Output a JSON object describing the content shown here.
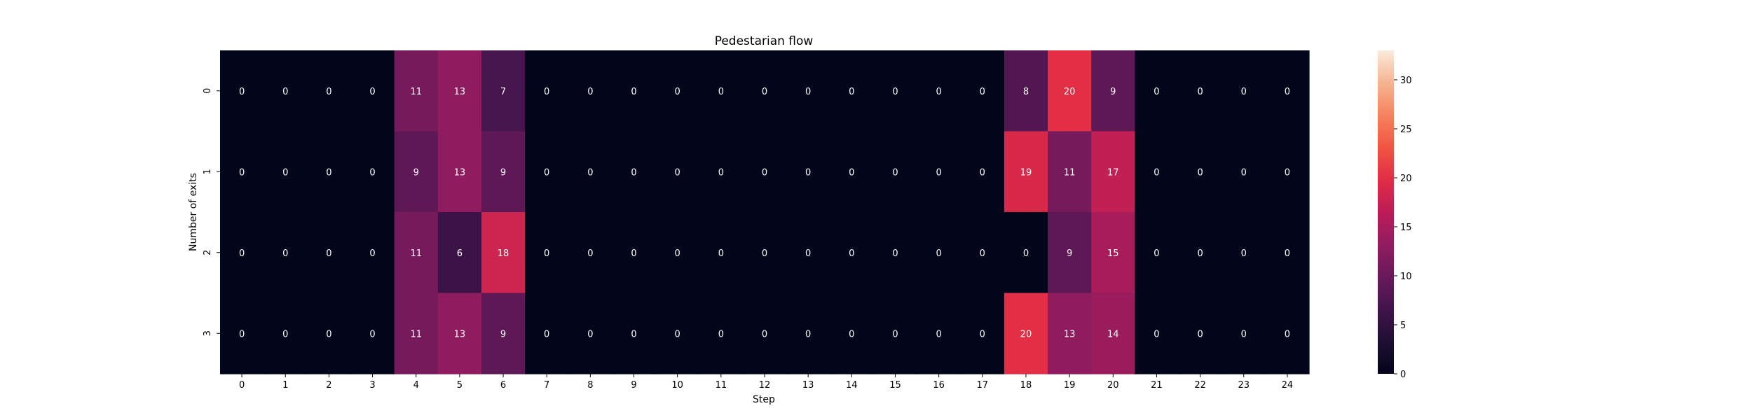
{
  "chart_data": {
    "type": "heatmap",
    "title": "Pedestarian flow",
    "xlabel": "Step",
    "ylabel": "Number of exits",
    "x": [
      "0",
      "1",
      "2",
      "3",
      "4",
      "5",
      "6",
      "7",
      "8",
      "9",
      "10",
      "11",
      "12",
      "13",
      "14",
      "15",
      "16",
      "17",
      "18",
      "19",
      "20",
      "21",
      "22",
      "23",
      "24"
    ],
    "y": [
      "0",
      "1",
      "2",
      "3"
    ],
    "values": [
      [
        0,
        0,
        0,
        0,
        11,
        13,
        7,
        0,
        0,
        0,
        0,
        0,
        0,
        0,
        0,
        0,
        0,
        0,
        8,
        20,
        9,
        0,
        0,
        0,
        0
      ],
      [
        0,
        0,
        0,
        0,
        9,
        13,
        9,
        0,
        0,
        0,
        0,
        0,
        0,
        0,
        0,
        0,
        0,
        0,
        19,
        11,
        17,
        0,
        0,
        0,
        0
      ],
      [
        0,
        0,
        0,
        0,
        11,
        6,
        18,
        0,
        0,
        0,
        0,
        0,
        0,
        0,
        0,
        0,
        0,
        0,
        0,
        9,
        15,
        0,
        0,
        0,
        0
      ],
      [
        0,
        0,
        0,
        0,
        11,
        13,
        9,
        0,
        0,
        0,
        0,
        0,
        0,
        0,
        0,
        0,
        0,
        0,
        20,
        13,
        14,
        0,
        0,
        0,
        0
      ]
    ],
    "colorbar": {
      "vmin": 0,
      "vmax": 33,
      "ticks": [
        0,
        5,
        10,
        15,
        20,
        25,
        30
      ],
      "colormap": "rocket",
      "position": "right"
    },
    "annotations_shown": true,
    "grid": false
  }
}
